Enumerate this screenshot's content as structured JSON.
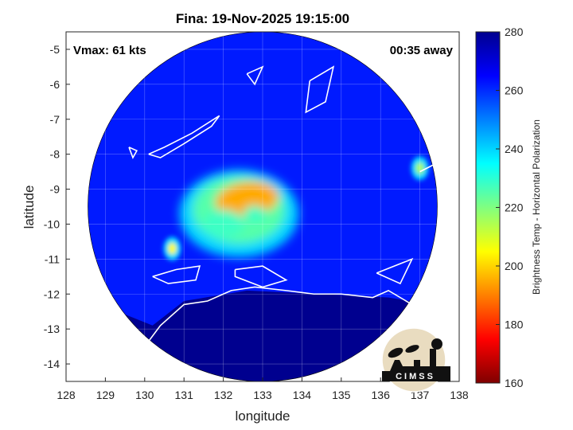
{
  "chart_data": {
    "type": "heatmap",
    "title": "Fina: 19-Nov-2025 19:15:00",
    "xlabel": "longitude",
    "ylabel": "latitude",
    "xlim": [
      128,
      138
    ],
    "ylim": [
      -14.5,
      -4.5
    ],
    "xticks": [
      "128",
      "129",
      "130",
      "131",
      "132",
      "133",
      "134",
      "135",
      "136",
      "137",
      "138"
    ],
    "yticks": [
      "-5",
      "-6",
      "-7",
      "-8",
      "-9",
      "-10",
      "-11",
      "-12",
      "-13",
      "-14"
    ],
    "grid": true,
    "annotations": {
      "vmax": "Vmax: 61 kts",
      "time_away": "00:35 away"
    },
    "colorbar": {
      "label": "Brightness Temp - Horizontal Polarization",
      "range": [
        160,
        280
      ],
      "ticks": [
        "160",
        "180",
        "200",
        "220",
        "240",
        "260",
        "280"
      ],
      "colormap": [
        "#7f0000",
        "#ff0000",
        "#ff8000",
        "#ffff00",
        "#80ff80",
        "#00ffff",
        "#0080ff",
        "#0000ff",
        "#00008f"
      ]
    },
    "swath": {
      "center_lon": 133,
      "center_lat": -9.5,
      "radius_deg": 5
    },
    "background_tb": 262,
    "land_tb": 284,
    "features": [
      {
        "name": "eyewall",
        "lon": 132.6,
        "lat": -9.3,
        "tb": 195
      },
      {
        "name": "eye",
        "lon": 132.8,
        "lat": -9.7,
        "tb": 228
      },
      {
        "name": "inner-band",
        "lon": 132.0,
        "lat": -10.0,
        "tb": 228
      },
      {
        "name": "cell-west",
        "lon": 130.7,
        "lat": -10.7,
        "tb": 205
      },
      {
        "name": "cell-east",
        "lon": 137.0,
        "lat": -8.4,
        "tb": 215
      }
    ],
    "logo": "CIMSS"
  }
}
